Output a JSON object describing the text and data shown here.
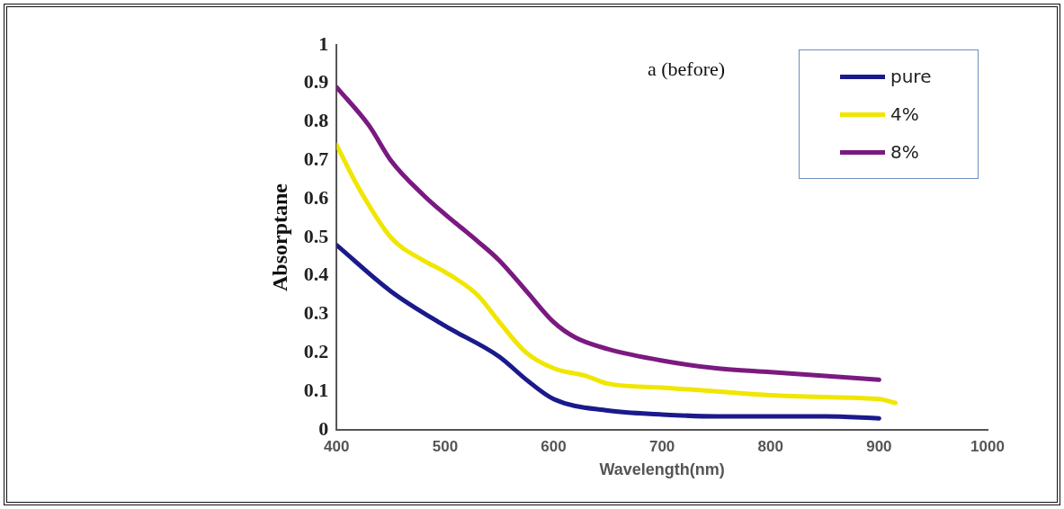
{
  "chart_data": {
    "type": "line",
    "xlabel": "Wavelength(nm)",
    "ylabel": "Absorptane",
    "annotations": [
      "a (before)"
    ],
    "xlim": [
      400,
      1000
    ],
    "xticks": [
      400,
      500,
      600,
      700,
      800,
      900,
      1000
    ],
    "ylim": [
      0,
      1
    ],
    "yticks": [
      0,
      0.1,
      0.2,
      0.3,
      0.4,
      0.5,
      0.6,
      0.7,
      0.8,
      0.9,
      1
    ],
    "grid": false,
    "legend": "top right",
    "marker": "none",
    "line_style": "solid",
    "series": [
      {
        "name": "pure",
        "color": "#1a1a8c",
        "x": [
          400,
          450,
          500,
          550,
          575,
          600,
          650,
          700,
          750,
          800,
          850,
          900
        ],
        "values": [
          0.48,
          0.36,
          0.27,
          0.19,
          0.13,
          0.08,
          0.05,
          0.04,
          0.035,
          0.035,
          0.035,
          0.03
        ]
      },
      {
        "name": "4%",
        "color": "#f0e600",
        "x": [
          400,
          420,
          450,
          480,
          500,
          530,
          550,
          575,
          600,
          630,
          650,
          700,
          750,
          800,
          850,
          900,
          915
        ],
        "values": [
          0.74,
          0.63,
          0.5,
          0.44,
          0.41,
          0.35,
          0.28,
          0.2,
          0.16,
          0.14,
          0.12,
          0.11,
          0.1,
          0.09,
          0.085,
          0.08,
          0.07
        ]
      },
      {
        "name": "8%",
        "color": "#7a1a80",
        "x": [
          400,
          430,
          450,
          480,
          500,
          530,
          550,
          575,
          600,
          620,
          650,
          700,
          750,
          800,
          850,
          900
        ],
        "values": [
          0.89,
          0.79,
          0.7,
          0.61,
          0.56,
          0.49,
          0.44,
          0.36,
          0.28,
          0.24,
          0.21,
          0.18,
          0.16,
          0.15,
          0.14,
          0.13
        ]
      }
    ]
  }
}
